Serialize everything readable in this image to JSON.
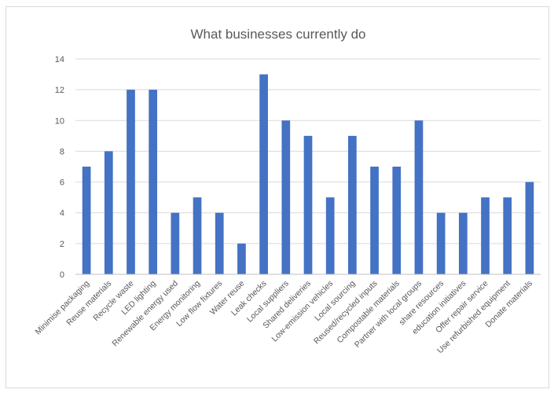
{
  "chart_data": {
    "type": "bar",
    "title": "What businesses currently do",
    "xlabel": "",
    "ylabel": "",
    "ylim": [
      0,
      14
    ],
    "yticks": [
      0,
      2,
      4,
      6,
      8,
      10,
      12,
      14
    ],
    "grid": true,
    "legend": "none",
    "bar_color": "#4472c4",
    "categories": [
      "Minimise packaging",
      "Reuse materials",
      "Recycle waste",
      "LED lighting",
      "Renewable energy used",
      "Energy monitoring",
      "Low flow fixtures",
      "Water reuse",
      "Leak checks",
      "Local suppliers",
      "Shared deliveries",
      "Low-emission vehicles",
      "Local sourcing",
      "Reused/recycled inputs",
      "Compostable materials",
      "Partner with local groups",
      "share resources",
      "education initiatives",
      "Offer repair service",
      "Use refurbished equipment",
      "Donate materials"
    ],
    "values": [
      7,
      8,
      12,
      12,
      4,
      5,
      4,
      2,
      13,
      10,
      9,
      5,
      9,
      7,
      7,
      10,
      4,
      4,
      5,
      5,
      6
    ]
  }
}
